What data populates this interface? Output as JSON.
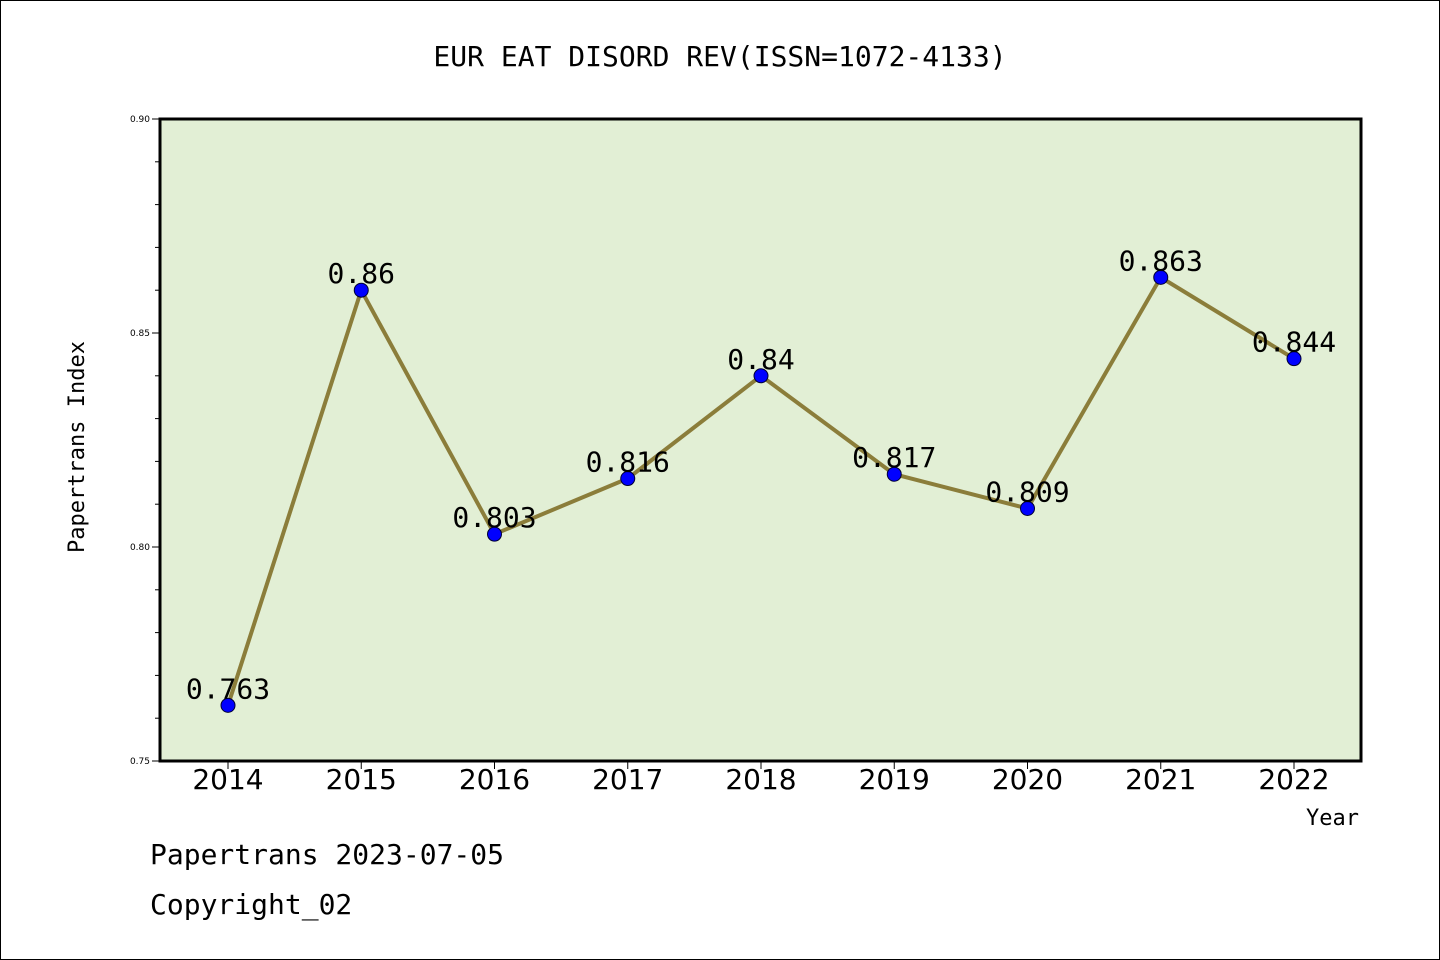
{
  "chart_data": {
    "type": "line",
    "title": "EUR EAT DISORD REV(ISSN=1072-4133)",
    "xlabel": "Year",
    "ylabel": "Papertrans Index",
    "categories": [
      "2014",
      "2015",
      "2016",
      "2017",
      "2018",
      "2019",
      "2020",
      "2021",
      "2022"
    ],
    "values": [
      0.763,
      0.86,
      0.803,
      0.816,
      0.84,
      0.817,
      0.809,
      0.863,
      0.844
    ],
    "data_labels": [
      "0.763",
      "0.86",
      "0.803",
      "0.816",
      "0.84",
      "0.817",
      "0.809",
      "0.863",
      "0.844"
    ],
    "ylim": [
      0.75,
      0.9
    ],
    "yticks": [
      "0.75",
      "0.80",
      "0.85",
      "0.90"
    ],
    "grid": false,
    "colors": {
      "plot_background": "#e2efd5",
      "line": "#8b7d3a",
      "marker": "#0000ff"
    }
  },
  "footer": {
    "line1": "Papertrans 2023-07-05",
    "line2": "Copyright_02"
  }
}
